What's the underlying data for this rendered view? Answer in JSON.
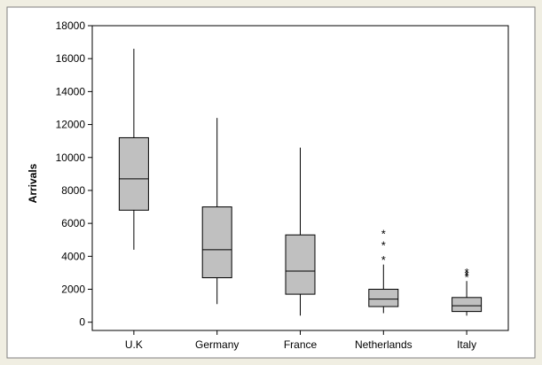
{
  "chart_data": {
    "type": "boxplot",
    "ylabel": "Arrivals",
    "xlabel": "",
    "title": "",
    "ylim": [
      -500,
      18000
    ],
    "yticks": [
      0,
      2000,
      4000,
      6000,
      8000,
      10000,
      12000,
      14000,
      16000,
      18000
    ],
    "grid": false,
    "categories": [
      "U.K",
      "Germany",
      "France",
      "Netherlands",
      "Italy"
    ],
    "boxes": [
      {
        "category": "U.K",
        "whisker_low": 4400,
        "q1": 6800,
        "median": 8700,
        "q3": 11200,
        "whisker_high": 16600,
        "outliers": []
      },
      {
        "category": "Germany",
        "whisker_low": 1100,
        "q1": 2700,
        "median": 4400,
        "q3": 7000,
        "whisker_high": 12400,
        "outliers": []
      },
      {
        "category": "France",
        "whisker_low": 400,
        "q1": 1700,
        "median": 3100,
        "q3": 5300,
        "whisker_high": 10600,
        "outliers": []
      },
      {
        "category": "Netherlands",
        "whisker_low": 550,
        "q1": 950,
        "median": 1400,
        "q3": 2000,
        "whisker_high": 3500,
        "outliers": [
          3800,
          4700,
          5400
        ]
      },
      {
        "category": "Italy",
        "whisker_low": 400,
        "q1": 650,
        "median": 1000,
        "q3": 1500,
        "whisker_high": 2500,
        "outliers": [
          2750,
          2900,
          3050
        ]
      }
    ]
  }
}
